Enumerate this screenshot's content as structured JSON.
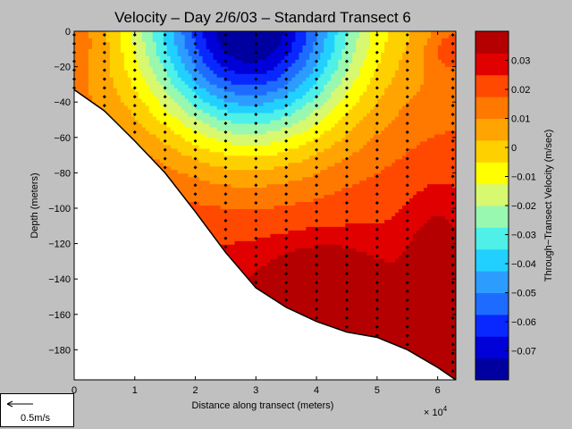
{
  "chart_data": {
    "type": "heatmap",
    "title": "Velocity – Day 2/6/03 – Standard Transect 6",
    "xlabel": "Distance along transect (meters)",
    "ylabel": "Depth (meters)",
    "x_multiplier": "× 10",
    "x_exponent": "4",
    "xlim": [
      0,
      63000
    ],
    "ylim": [
      -197,
      0
    ],
    "xticks": [
      0,
      10000,
      20000,
      30000,
      40000,
      50000,
      60000
    ],
    "xtick_labels": [
      "0",
      "1",
      "2",
      "3",
      "4",
      "5",
      "6"
    ],
    "yticks": [
      0,
      -20,
      -40,
      -60,
      -80,
      -100,
      -120,
      -140,
      -160,
      -180
    ],
    "ytick_labels": [
      "0",
      "−20",
      "−40",
      "−60",
      "−80",
      "−100",
      "−120",
      "−140",
      "−160",
      "−180"
    ],
    "colorbar": {
      "label": "Through−Transect Velocity (m/sec)",
      "range": [
        -0.08,
        0.04
      ],
      "ticks": [
        0.03,
        0.02,
        0.01,
        0,
        -0.01,
        -0.02,
        -0.03,
        -0.04,
        -0.05,
        -0.06,
        -0.07
      ],
      "tick_labels": [
        "0.03",
        "0.02",
        "0.01",
        "0",
        "−0.01",
        "−0.02",
        "−0.03",
        "−0.04",
        "−0.05",
        "−0.06",
        "−0.07"
      ],
      "colors": [
        "#0000a0",
        "#0000d8",
        "#0828ff",
        "#1e6cff",
        "#2c9cff",
        "#22d0ff",
        "#4ef0e8",
        "#98f8b0",
        "#d8f870",
        "#ffff00",
        "#ffd000",
        "#ffa400",
        "#ff7800",
        "#ff4800",
        "#e00000",
        "#b40000"
      ]
    },
    "bottom_profile": [
      [
        0,
        -33
      ],
      [
        5000,
        -45
      ],
      [
        10000,
        -62
      ],
      [
        15000,
        -80
      ],
      [
        20000,
        -102
      ],
      [
        25000,
        -125
      ],
      [
        30000,
        -145
      ],
      [
        35000,
        -156
      ],
      [
        40000,
        -164
      ],
      [
        45000,
        -170
      ],
      [
        50000,
        -173
      ],
      [
        55000,
        -180
      ],
      [
        60000,
        -190
      ],
      [
        63000,
        -197
      ]
    ],
    "stations": [
      {
        "x": 0,
        "bottom": -33
      },
      {
        "x": 5000,
        "bottom": -45
      },
      {
        "x": 10000,
        "bottom": -62
      },
      {
        "x": 15000,
        "bottom": -80
      },
      {
        "x": 20000,
        "bottom": -102
      },
      {
        "x": 25000,
        "bottom": -125
      },
      {
        "x": 30000,
        "bottom": -145
      },
      {
        "x": 35000,
        "bottom": -156
      },
      {
        "x": 40000,
        "bottom": -164
      },
      {
        "x": 45000,
        "bottom": -170
      },
      {
        "x": 50000,
        "bottom": -173
      },
      {
        "x": 55000,
        "bottom": -180
      },
      {
        "x": 62500,
        "bottom": -197
      }
    ],
    "sample_spacing_m": 5,
    "grid": false
  },
  "scale_legend": {
    "label": "0.5m/s"
  }
}
